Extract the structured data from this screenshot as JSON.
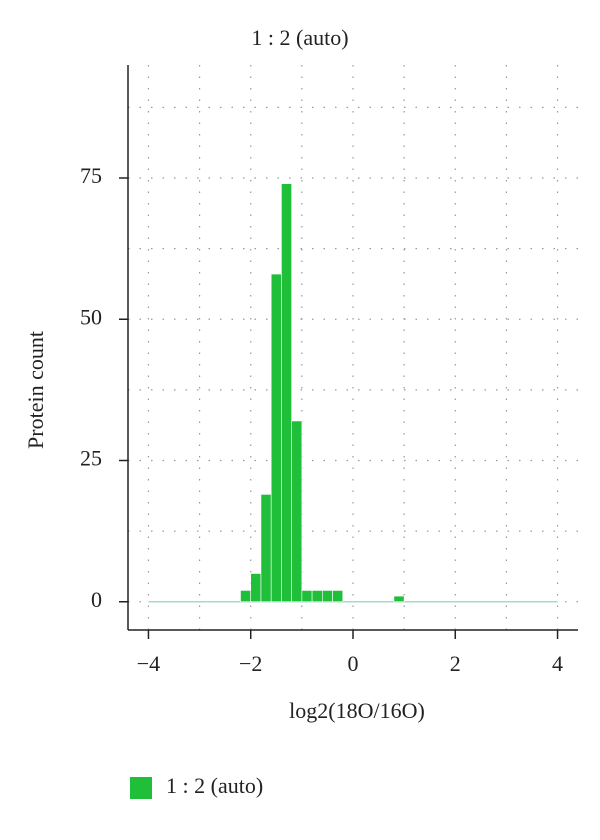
{
  "chart_data": {
    "type": "histogram",
    "title": "1 : 2 (auto)",
    "x_label": "log2(18O/16O)",
    "y_label": "Protein count",
    "bins": [
      -4,
      -3.8,
      -3.6,
      -3.4,
      -3.2,
      -3,
      -2.8,
      -2.6,
      -2.4,
      -2.2,
      -2,
      -1.8,
      -1.6,
      -1.4,
      -1.2,
      -1,
      -0.8,
      -0.6,
      -0.4,
      -0.2,
      0,
      0.2,
      0.4,
      0.6,
      0.8,
      1,
      1.2,
      1.4,
      1.6,
      1.8,
      2,
      2.2,
      2.4,
      2.6,
      2.8,
      3,
      3.2,
      3.4,
      3.6,
      3.8,
      4
    ],
    "series": [
      {
        "name": "1 : 2 (auto)",
        "color": "#1fbf3a",
        "values": [
          0,
          0,
          0,
          0,
          0,
          0,
          0,
          0,
          0,
          2,
          5,
          19,
          58,
          74,
          32,
          2,
          2,
          2,
          2,
          0,
          0,
          0,
          0,
          0,
          1,
          0,
          0,
          0,
          0,
          0,
          0,
          0,
          0,
          0,
          0,
          0,
          0,
          0,
          0,
          0
        ]
      }
    ],
    "xlim": [
      -4.4,
      4.4
    ],
    "ylim": [
      -5,
      95
    ],
    "xticks": [
      {
        "value": -4,
        "label": "−4"
      },
      {
        "value": -2,
        "label": "−2"
      },
      0,
      2,
      4
    ],
    "yticks": [
      0,
      25,
      50,
      75
    ],
    "grid": true,
    "xgrid": [
      -4,
      -3,
      -2,
      -1,
      0,
      1,
      2,
      3,
      4
    ],
    "ygrid": [
      0,
      12.5,
      25,
      37.5,
      50,
      62.5,
      75,
      87.5
    ],
    "legend": "bottom-left"
  }
}
